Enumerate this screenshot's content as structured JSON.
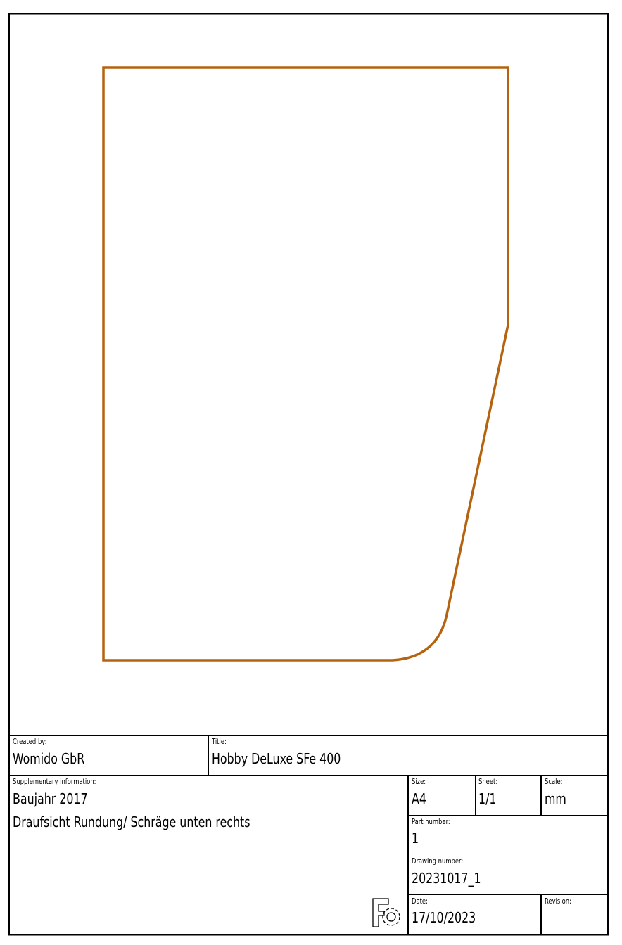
{
  "drawing": {
    "outline_color": "#b5630f"
  },
  "title_block": {
    "created_by": {
      "label": "Created by:",
      "value": "Womido GbR"
    },
    "title": {
      "label": "Title:",
      "value": "Hobby DeLuxe SFe 400"
    },
    "supplementary": {
      "label": "Supplementary information:",
      "lines": [
        "Baujahr 2017",
        "Draufsicht Rundung/ Schräge unten rechts"
      ]
    },
    "size": {
      "label": "Size:",
      "value": "A4"
    },
    "sheet": {
      "label": "Sheet:",
      "value": "1/1"
    },
    "scale": {
      "label": "Scale:",
      "value": "mm"
    },
    "part_number": {
      "label": "Part number:",
      "value": "1"
    },
    "drawing_number": {
      "label": "Drawing number:",
      "value": "20231017_1"
    },
    "date": {
      "label": "Date:",
      "value": "17/10/2023"
    },
    "revision": {
      "label": "Revision:",
      "value": ""
    }
  }
}
